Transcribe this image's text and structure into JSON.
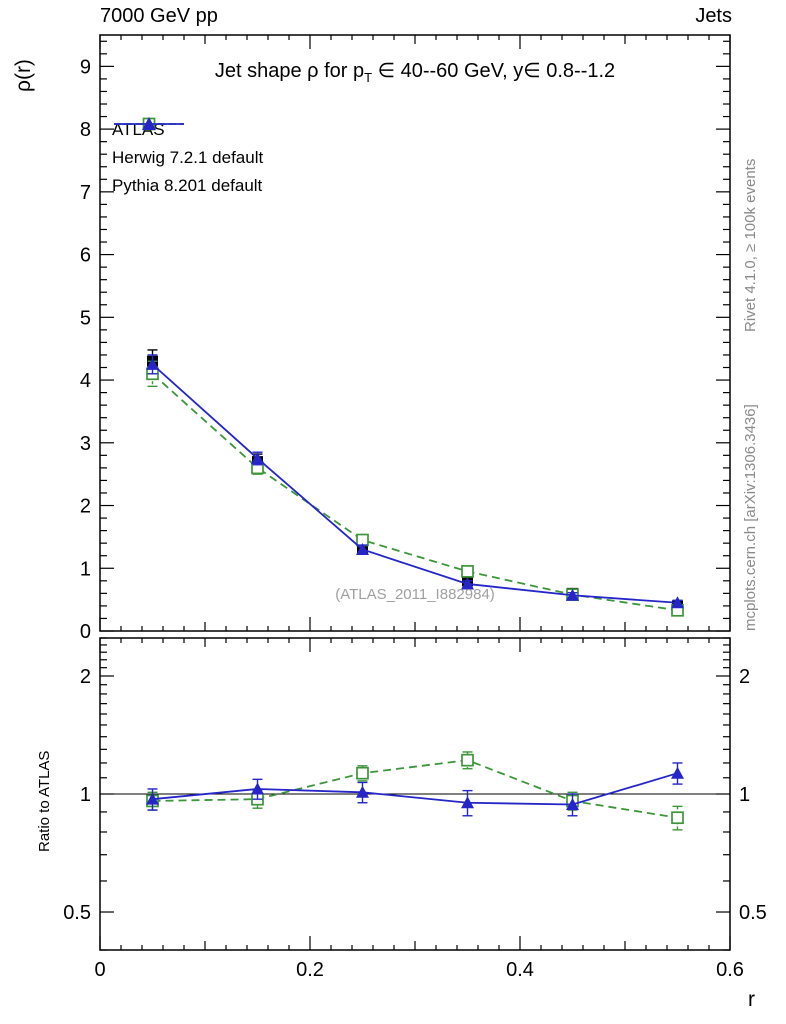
{
  "page": {
    "header_left": "7000 GeV pp",
    "header_right": "Jets",
    "watermark": "(ATLAS_2011_I882984)",
    "side_text_top": "Rivet 4.1.0, ≥ 100k events",
    "side_text_bottom": "mcplots.cern.ch [arXiv:1306.3436]",
    "x_axis_label": "r"
  },
  "title": {
    "pre": "Jet shape ρ for p",
    "sub": "T",
    "post": " ∈ 40--60 GeV, y∈ 0.8--1.2"
  },
  "colors": {
    "atlas": "#000000",
    "herwig": "#3c9639",
    "pythia": "#2525c8",
    "frame": "#000000",
    "watermark_gray": "#a0a0a0",
    "side_gray": "#8a8a8a"
  },
  "legend": [
    {
      "label": "ATLAS",
      "marker": "filled-square",
      "color": "#000000",
      "line": "none"
    },
    {
      "label": "Herwig 7.2.1 default",
      "marker": "open-square",
      "color": "#3c9639",
      "line": "dashed"
    },
    {
      "label": "Pythia 8.201 default",
      "marker": "filled-triangle",
      "color": "#2525c8",
      "line": "solid"
    }
  ],
  "chart_data": [
    {
      "type": "scatter",
      "panel": "main",
      "title": "Jet shape ρ for pT ∈ 40--60 GeV, y ∈ 0.8--1.2",
      "xlabel": "r",
      "ylabel": "ρ(r)",
      "xlim": [
        0,
        0.6
      ],
      "ylim": [
        0,
        9.5
      ],
      "yscale": "linear",
      "yticks": [
        0,
        1,
        2,
        3,
        4,
        5,
        6,
        7,
        8,
        9
      ],
      "xticks": [
        0,
        0.2,
        0.4,
        0.6
      ],
      "xtick_labels": [
        "0",
        "0.2",
        "0.4",
        "0.6"
      ],
      "x": [
        0.05,
        0.15,
        0.25,
        0.35,
        0.45,
        0.55
      ],
      "series": [
        {
          "name": "ATLAS",
          "marker": "filled-square",
          "color": "#000000",
          "line": "none",
          "values": [
            4.3,
            2.7,
            1.3,
            0.8,
            0.6,
            0.4
          ],
          "errors": [
            0.18,
            0.12,
            0.07,
            0.06,
            0.05,
            0.05
          ]
        },
        {
          "name": "Herwig 7.2.1 default",
          "marker": "open-square",
          "color": "#3c9639",
          "line": "dashed",
          "values": [
            4.1,
            2.6,
            1.45,
            0.95,
            0.58,
            0.33
          ],
          "errors": [
            0.2,
            0.1,
            0.08,
            0.07,
            0.05,
            0.04
          ]
        },
        {
          "name": "Pythia 8.201 default",
          "marker": "filled-triangle",
          "color": "#2525c8",
          "line": "solid",
          "values": [
            4.25,
            2.75,
            1.3,
            0.75,
            0.57,
            0.45
          ],
          "errors": [
            0.15,
            0.1,
            0.07,
            0.05,
            0.04,
            0.04
          ]
        }
      ]
    },
    {
      "type": "scatter",
      "panel": "ratio",
      "ylabel": "Ratio to ATLAS",
      "xlim": [
        0,
        0.6
      ],
      "ylim": [
        0.4,
        2.5
      ],
      "yscale": "log",
      "yticks": [
        0.5,
        1,
        2
      ],
      "ytick_labels": [
        "0.5",
        "1",
        "2"
      ],
      "reference_line": 1,
      "x": [
        0.05,
        0.15,
        0.25,
        0.35,
        0.45,
        0.55
      ],
      "series": [
        {
          "name": "Herwig 7.2.1 default",
          "marker": "open-square",
          "color": "#3c9639",
          "line": "dashed",
          "values": [
            0.96,
            0.97,
            1.13,
            1.22,
            0.96,
            0.87
          ],
          "errors": [
            0.05,
            0.05,
            0.05,
            0.06,
            0.05,
            0.06
          ]
        },
        {
          "name": "Pythia 8.201 default",
          "marker": "filled-triangle",
          "color": "#2525c8",
          "line": "solid",
          "values": [
            0.97,
            1.03,
            1.01,
            0.95,
            0.94,
            1.13
          ],
          "errors": [
            0.06,
            0.06,
            0.06,
            0.07,
            0.06,
            0.07
          ]
        }
      ]
    }
  ]
}
